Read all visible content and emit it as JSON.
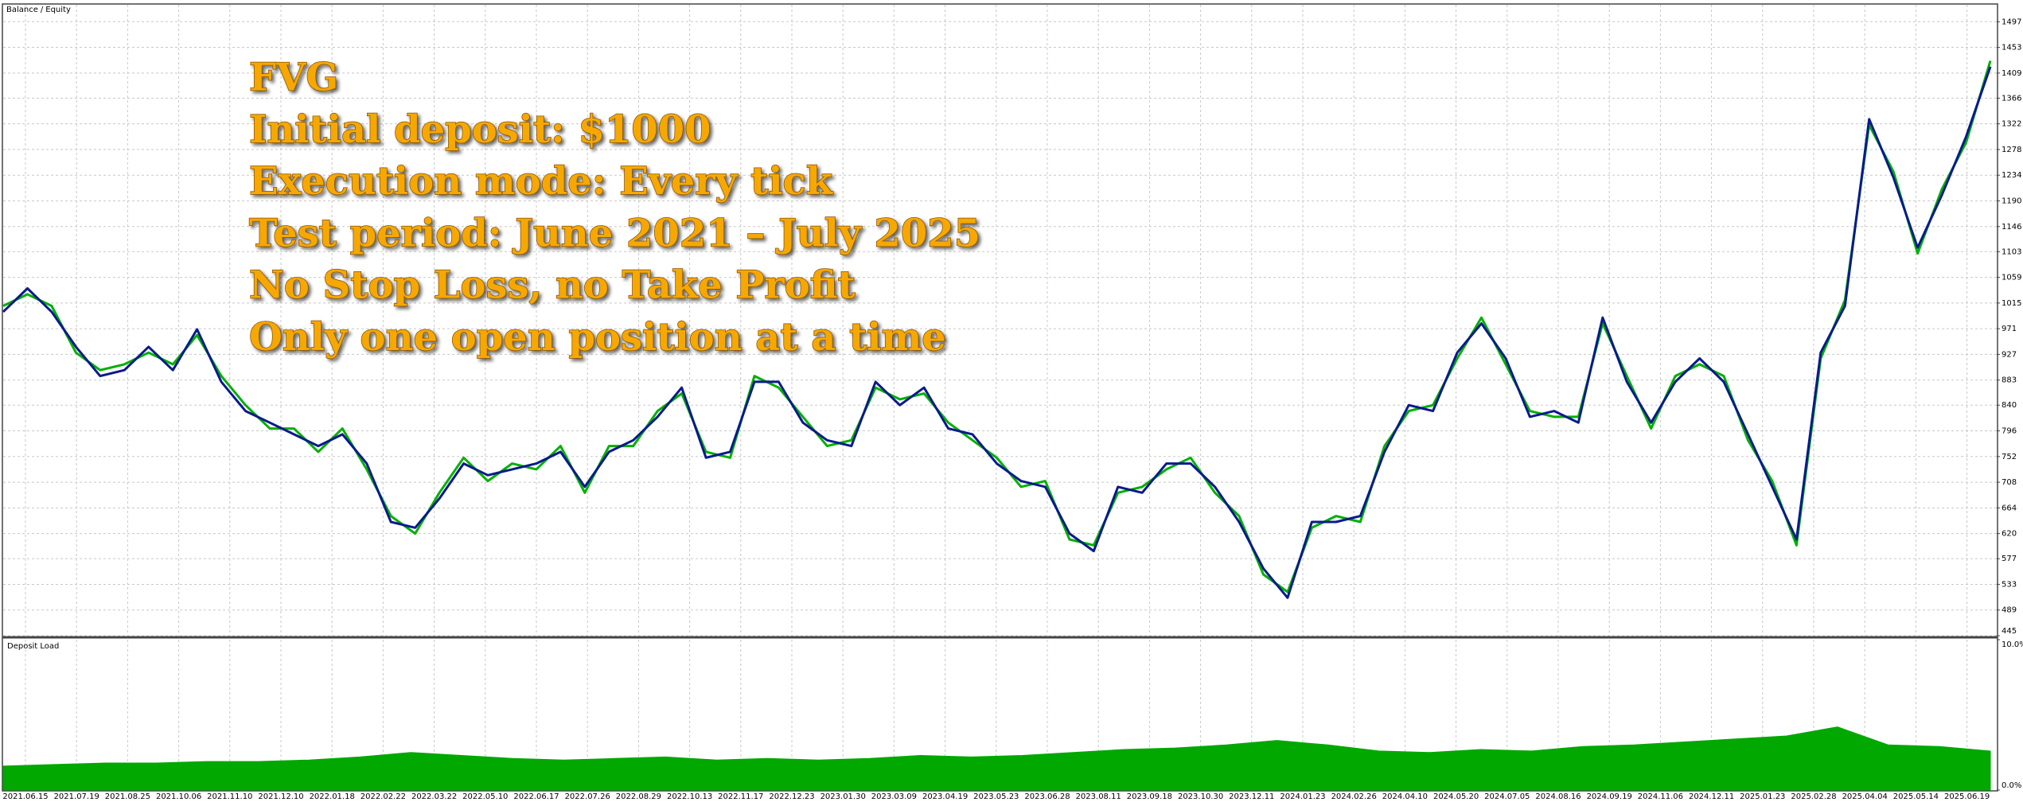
{
  "chart_data": [
    {
      "type": "line",
      "annotations": [
        "FVG",
        "Initial deposit: $1000",
        "Execution mode: Every tick",
        "Test period: June 2021 – July 2025",
        "No Stop Loss, no Take Profit",
        "Only one open position at a time"
      ],
      "legend_separator": "/",
      "x_labels": [
        "2021.06.15",
        "2021.07.19",
        "2021.08.25",
        "2021.10.06",
        "2021.11.10",
        "2021.12.10",
        "2022.01.18",
        "2022.02.22",
        "2022.03.22",
        "2022.05.10",
        "2022.06.17",
        "2022.07.26",
        "2022.08.29",
        "2022.10.13",
        "2022.11.17",
        "2022.12.23",
        "2023.01.30",
        "2023.03.09",
        "2023.04.19",
        "2023.05.23",
        "2023.06.28",
        "2023.08.11",
        "2023.09.18",
        "2023.10.30",
        "2023.12.11",
        "2024.01.23",
        "2024.02.26",
        "2024.04.10",
        "2024.05.20",
        "2024.07.05",
        "2024.08.16",
        "2024.09.19",
        "2024.11.06",
        "2024.12.11",
        "2025.01.23",
        "2025.02.28",
        "2025.04.04",
        "2025.05.14",
        "2025.06.19"
      ],
      "series": [
        {
          "name": "Equity",
          "color": "#00b000",
          "values": [
            1010,
            1030,
            1010,
            930,
            900,
            910,
            930,
            910,
            960,
            890,
            840,
            800,
            800,
            760,
            800,
            730,
            650,
            620,
            690,
            750,
            710,
            740,
            730,
            770,
            690,
            770,
            770,
            830,
            860,
            760,
            750,
            890,
            870,
            820,
            770,
            780,
            870,
            850,
            860,
            810,
            780,
            750,
            700,
            710,
            610,
            600,
            690,
            700,
            730,
            750,
            690,
            650,
            550,
            520,
            630,
            650,
            640,
            770,
            830,
            840,
            920,
            990,
            910,
            830,
            820,
            820,
            980,
            890,
            800,
            890,
            910,
            890,
            780,
            710,
            600,
            920,
            1020,
            1320,
            1240,
            1100,
            1210,
            1290,
            1430
          ]
        },
        {
          "name": "Balance",
          "color": "#0a1a8c",
          "values": [
            1000,
            1040,
            1000,
            940,
            890,
            900,
            940,
            900,
            970,
            880,
            830,
            810,
            790,
            770,
            790,
            740,
            640,
            630,
            680,
            740,
            720,
            730,
            740,
            760,
            700,
            760,
            780,
            820,
            870,
            750,
            760,
            880,
            880,
            810,
            780,
            770,
            880,
            840,
            870,
            800,
            790,
            740,
            710,
            700,
            620,
            590,
            700,
            690,
            740,
            740,
            700,
            640,
            560,
            510,
            640,
            640,
            650,
            760,
            840,
            830,
            930,
            980,
            920,
            820,
            830,
            810,
            990,
            880,
            810,
            880,
            920,
            880,
            790,
            700,
            610,
            930,
            1010,
            1330,
            1230,
            1110,
            1200,
            1300,
            1420
          ]
        }
      ],
      "ylim": [
        445,
        1526
      ],
      "yticks": [
        445,
        489,
        533,
        577,
        620,
        664,
        708,
        752,
        796,
        840,
        883,
        927,
        971,
        1015,
        1059,
        1103,
        1146,
        1190,
        1234,
        1278,
        1322,
        1366,
        1409,
        1453,
        1497
      ],
      "grid": true
    },
    {
      "type": "area",
      "series": [
        {
          "name": "Deposit Load",
          "color": "#00a800",
          "values": [
            1.6,
            1.7,
            1.8,
            1.8,
            1.9,
            1.9,
            2.0,
            2.2,
            2.5,
            2.3,
            2.1,
            2.0,
            2.1,
            2.2,
            2.0,
            2.1,
            2.0,
            2.1,
            2.3,
            2.2,
            2.3,
            2.5,
            2.7,
            2.8,
            3.0,
            3.3,
            3.0,
            2.6,
            2.5,
            2.7,
            2.6,
            2.9,
            3.0,
            3.2,
            3.4,
            3.6,
            4.2,
            3.0,
            2.9,
            2.6
          ]
        }
      ],
      "ylim": [
        0,
        10
      ],
      "yticks": [
        {
          "value": 0,
          "label": "0.0%"
        },
        {
          "value": 10,
          "label": "10.0%"
        }
      ]
    }
  ]
}
